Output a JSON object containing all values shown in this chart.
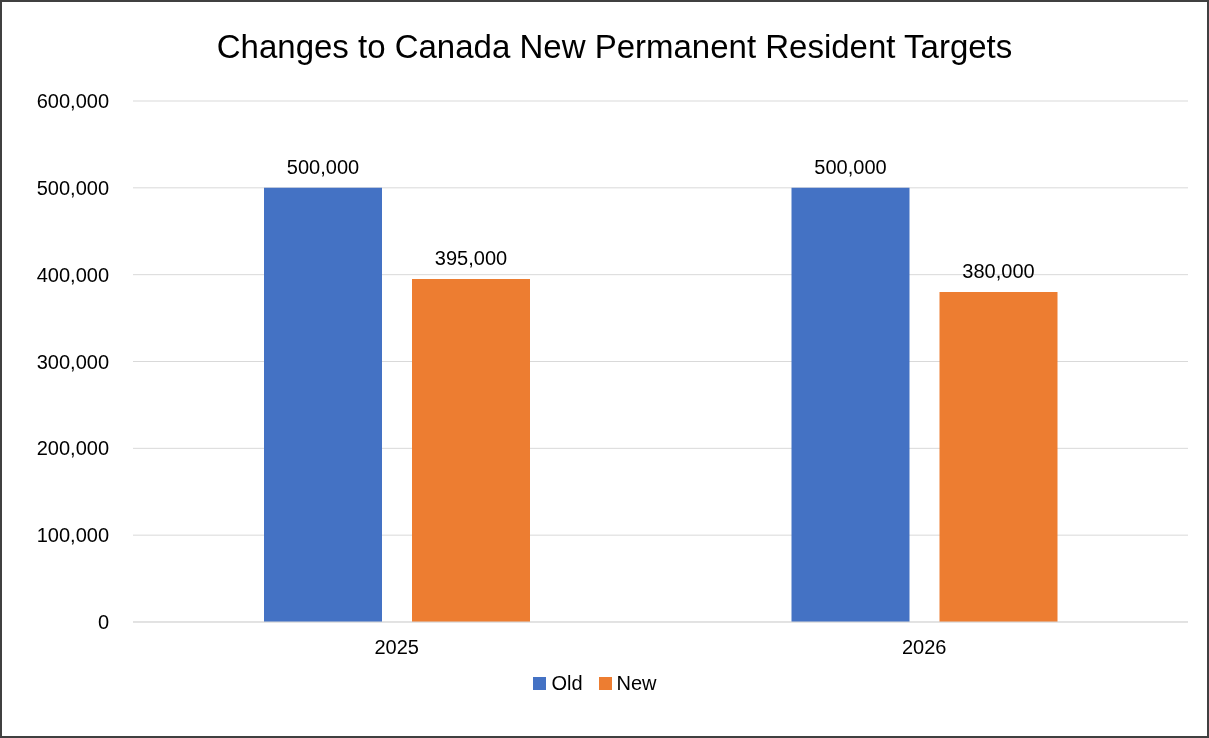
{
  "chart_data": {
    "type": "bar",
    "title": "Changes to Canada New Permanent Resident Targets",
    "categories": [
      "2025",
      "2026"
    ],
    "series": [
      {
        "name": "Old",
        "color": "#4472c4",
        "values": [
          500000,
          500000
        ],
        "value_labels": [
          "500,000",
          "500,000"
        ]
      },
      {
        "name": "New",
        "color": "#ed7d31",
        "values": [
          395000,
          380000
        ],
        "value_labels": [
          "395,000",
          "380,000"
        ]
      }
    ],
    "ylim": [
      0,
      600000
    ],
    "yticks": [
      0,
      {
        "value": 100000,
        "label": "100,000"
      },
      {
        "value": 200000,
        "label": "200,000"
      },
      {
        "value": 300000,
        "label": "300,000"
      },
      {
        "value": 400000,
        "label": "400,000"
      },
      {
        "value": 500000,
        "label": "500,000"
      },
      {
        "value": 600000,
        "label": "600,000"
      }
    ],
    "grid": "y",
    "legend": "bottom"
  }
}
